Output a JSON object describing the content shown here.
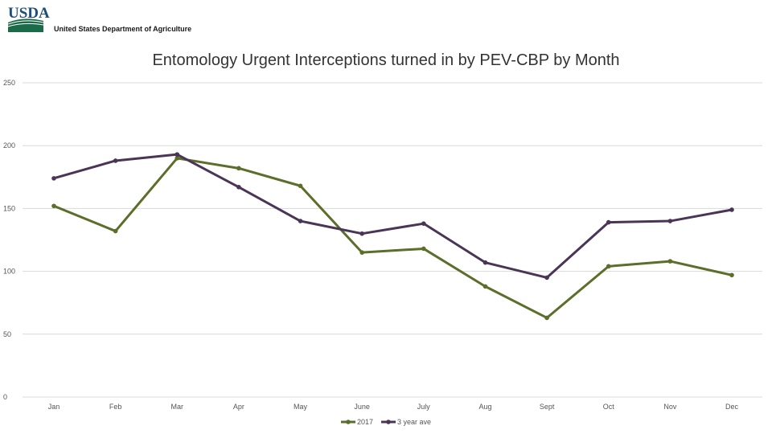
{
  "header": {
    "logo_mark": "USDA",
    "logo_text": "United States Department of Agriculture"
  },
  "colors": {
    "series_2017": "#5b6e2a",
    "series_3yr": "#4a3556",
    "logo_green": "#1b6b4a",
    "logo_blue": "#1d4e7a",
    "gridline": "#d9d9d9"
  },
  "chart_data": {
    "type": "line",
    "title": "Entomology Urgent Interceptions turned in by PEV-CBP by Month",
    "categories": [
      "Jan",
      "Feb",
      "Mar",
      "Apr",
      "May",
      "June",
      "July",
      "Aug",
      "Sept",
      "Oct",
      "Nov",
      "Dec"
    ],
    "yticks": [
      "250",
      "200",
      "150",
      "100",
      "50",
      "0"
    ],
    "ylim": [
      0,
      250
    ],
    "grid": true,
    "legend_position": "bottom",
    "series": [
      {
        "name": "2017",
        "values": [
          152,
          132,
          190,
          182,
          168,
          115,
          118,
          88,
          63,
          104,
          108,
          97
        ]
      },
      {
        "name": "3 year ave",
        "values": [
          174,
          188,
          193,
          167,
          140,
          130,
          138,
          107,
          95,
          139,
          140,
          149
        ]
      }
    ]
  }
}
